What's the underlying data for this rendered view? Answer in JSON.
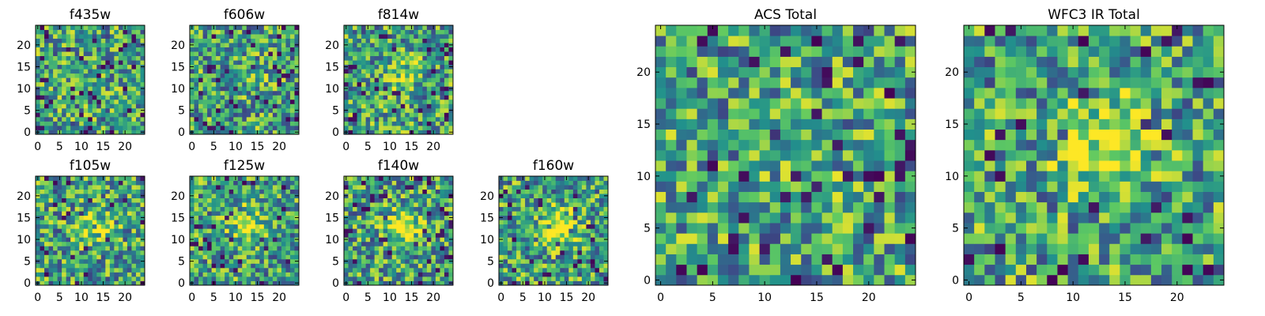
{
  "figure": {
    "colormap": "viridis",
    "colormap_stops": [
      "#440154",
      "#3b528b",
      "#21918c",
      "#5ec962",
      "#fde725"
    ],
    "grid_size": 25
  },
  "chart_data": [
    {
      "type": "heatmap",
      "title": "f435w",
      "xlabel": "",
      "ylabel": "",
      "x_ticks": [
        "0",
        "5",
        "10",
        "15",
        "20"
      ],
      "y_ticks": [
        "0",
        "5",
        "10",
        "15",
        "20"
      ],
      "xlim": [
        0,
        24
      ],
      "ylim": [
        0,
        24
      ],
      "peak": 0,
      "seed": 11
    },
    {
      "type": "heatmap",
      "title": "f606w",
      "xlabel": "",
      "ylabel": "",
      "x_ticks": [
        "0",
        "5",
        "10",
        "15",
        "20"
      ],
      "y_ticks": [
        "0",
        "5",
        "10",
        "15",
        "20"
      ],
      "xlim": [
        0,
        24
      ],
      "ylim": [
        0,
        24
      ],
      "peak": 0.1,
      "seed": 23
    },
    {
      "type": "heatmap",
      "title": "f814w",
      "xlabel": "",
      "ylabel": "",
      "x_ticks": [
        "0",
        "5",
        "10",
        "15",
        "20"
      ],
      "y_ticks": [
        "0",
        "5",
        "10",
        "15",
        "20"
      ],
      "xlim": [
        0,
        24
      ],
      "ylim": [
        0,
        24
      ],
      "peak": 0.2,
      "seed": 37
    },
    {
      "type": "heatmap",
      "title": "f105w",
      "xlabel": "",
      "ylabel": "",
      "x_ticks": [
        "0",
        "5",
        "10",
        "15",
        "20"
      ],
      "y_ticks": [
        "0",
        "5",
        "10",
        "15",
        "20"
      ],
      "xlim": [
        0,
        24
      ],
      "ylim": [
        0,
        24
      ],
      "peak": 0.3,
      "seed": 41
    },
    {
      "type": "heatmap",
      "title": "f125w",
      "xlabel": "",
      "ylabel": "",
      "x_ticks": [
        "0",
        "5",
        "10",
        "15",
        "20"
      ],
      "y_ticks": [
        "0",
        "5",
        "10",
        "15",
        "20"
      ],
      "xlim": [
        0,
        24
      ],
      "ylim": [
        0,
        24
      ],
      "peak": 0.35,
      "seed": 53
    },
    {
      "type": "heatmap",
      "title": "f140w",
      "xlabel": "",
      "ylabel": "",
      "x_ticks": [
        "0",
        "5",
        "10",
        "15",
        "20"
      ],
      "y_ticks": [
        "0",
        "5",
        "10",
        "15",
        "20"
      ],
      "xlim": [
        0,
        24
      ],
      "ylim": [
        0,
        24
      ],
      "peak": 0.45,
      "seed": 67
    },
    {
      "type": "heatmap",
      "title": "f160w",
      "xlabel": "",
      "ylabel": "",
      "x_ticks": [
        "0",
        "5",
        "10",
        "15",
        "20"
      ],
      "y_ticks": [
        "0",
        "5",
        "10",
        "15",
        "20"
      ],
      "xlim": [
        0,
        24
      ],
      "ylim": [
        0,
        24
      ],
      "peak": 0.5,
      "seed": 79
    },
    {
      "type": "heatmap",
      "title": "ACS Total",
      "xlabel": "",
      "ylabel": "",
      "x_ticks": [
        "0",
        "5",
        "10",
        "15",
        "20"
      ],
      "y_ticks": [
        "0",
        "5",
        "10",
        "15",
        "20"
      ],
      "xlim": [
        0,
        24
      ],
      "ylim": [
        0,
        24
      ],
      "peak": 0.15,
      "seed": 97
    },
    {
      "type": "heatmap",
      "title": "WFC3 IR Total",
      "xlabel": "",
      "ylabel": "",
      "x_ticks": [
        "0",
        "5",
        "10",
        "15",
        "20"
      ],
      "y_ticks": [
        "0",
        "5",
        "10",
        "15",
        "20"
      ],
      "xlim": [
        0,
        24
      ],
      "ylim": [
        0,
        24
      ],
      "peak": 0.55,
      "seed": 113
    }
  ]
}
